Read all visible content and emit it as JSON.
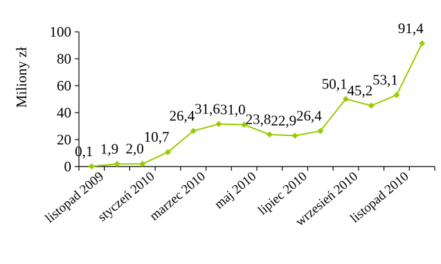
{
  "chart_data": {
    "type": "line",
    "ylabel": "Miliony zł",
    "ylim": [
      0,
      100
    ],
    "yticks": [
      0,
      20,
      40,
      60,
      80,
      100
    ],
    "grid": false,
    "legend": "none",
    "series_color": "#99cc00",
    "points": [
      {
        "x": 1,
        "y": 0.1,
        "label": "0,1"
      },
      {
        "x": 2,
        "y": 1.9,
        "label": "1,9"
      },
      {
        "x": 3,
        "y": 2.0,
        "label": "2,0"
      },
      {
        "x": 4,
        "y": 10.7,
        "label": "10,7"
      },
      {
        "x": 5,
        "y": 26.4,
        "label": "26,4"
      },
      {
        "x": 6,
        "y": 31.6,
        "label": "31,6"
      },
      {
        "x": 7,
        "y": 31.0,
        "label": "31,0"
      },
      {
        "x": 8,
        "y": 23.8,
        "label": "23,8"
      },
      {
        "x": 9,
        "y": 22.9,
        "label": "22,9"
      },
      {
        "x": 10,
        "y": 26.4,
        "label": "26,4"
      },
      {
        "x": 11,
        "y": 50.1,
        "label": "50,1"
      },
      {
        "x": 12,
        "y": 45.2,
        "label": "45,2"
      },
      {
        "x": 13,
        "y": 53.1,
        "label": "53,1"
      },
      {
        "x": 14,
        "y": 91.4,
        "label": "91,4"
      }
    ],
    "x_tick_labels": [
      {
        "at": 1.5,
        "text": "listopad 2009"
      },
      {
        "at": 3.5,
        "text": "styczeń 2010"
      },
      {
        "at": 5.5,
        "text": "marzec 2010"
      },
      {
        "at": 7.5,
        "text": "maj 2010"
      },
      {
        "at": 9.5,
        "text": "lipiec 2010"
      },
      {
        "at": 11.5,
        "text": "wrzesień 2010"
      },
      {
        "at": 13.5,
        "text": "listopad 2010"
      }
    ]
  }
}
